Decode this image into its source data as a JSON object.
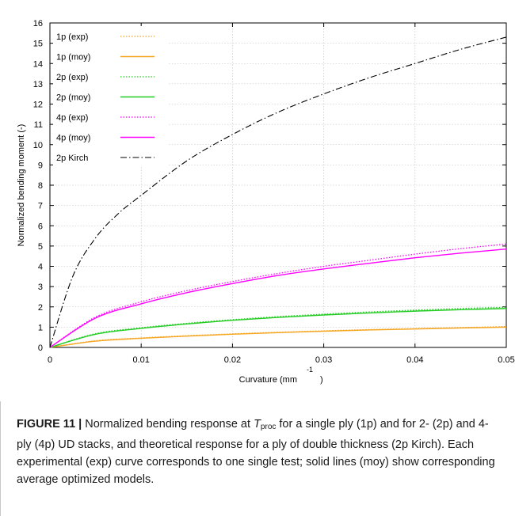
{
  "chart_data": {
    "type": "line",
    "xlabel": "Curvature (mm",
    "xlabel_exponent": "-1",
    "xlabel_close": ")",
    "ylabel": "Normalized bending moment (-)",
    "xlim": [
      0,
      0.05
    ],
    "ylim": [
      0,
      16
    ],
    "xticks": [
      "0",
      "0.01",
      "0.02",
      "0.03",
      "0.04",
      "0.05"
    ],
    "yticks": [
      "0",
      "1",
      "2",
      "3",
      "4",
      "5",
      "6",
      "7",
      "8",
      "9",
      "10",
      "11",
      "12",
      "13",
      "14",
      "15",
      "16"
    ],
    "grid": true,
    "legend_position": "top-left",
    "series": [
      {
        "name": "1p (exp)",
        "color": "#f5a623",
        "style": "dotted",
        "x": [
          0,
          0.005,
          0.01,
          0.015,
          0.02,
          0.025,
          0.03,
          0.035,
          0.04,
          0.045,
          0.05
        ],
        "y": [
          0,
          0.33,
          0.47,
          0.58,
          0.67,
          0.75,
          0.82,
          0.88,
          0.93,
          0.98,
          1.03
        ]
      },
      {
        "name": "1p (moy)",
        "color": "#f5a623",
        "style": "solid",
        "x": [
          0,
          0.005,
          0.01,
          0.015,
          0.02,
          0.025,
          0.03,
          0.035,
          0.04,
          0.045,
          0.05
        ],
        "y": [
          0,
          0.31,
          0.45,
          0.56,
          0.65,
          0.73,
          0.8,
          0.86,
          0.91,
          0.96,
          1.0
        ]
      },
      {
        "name": "2p (exp)",
        "color": "#22cc22",
        "style": "dotted",
        "x": [
          0,
          0.005,
          0.01,
          0.015,
          0.02,
          0.025,
          0.03,
          0.035,
          0.04,
          0.045,
          0.05
        ],
        "y": [
          0,
          0.68,
          0.97,
          1.19,
          1.37,
          1.52,
          1.64,
          1.75,
          1.84,
          1.92,
          1.98
        ]
      },
      {
        "name": "2p (moy)",
        "color": "#22cc22",
        "style": "solid",
        "x": [
          0,
          0.005,
          0.01,
          0.015,
          0.02,
          0.025,
          0.03,
          0.035,
          0.04,
          0.045,
          0.05
        ],
        "y": [
          0,
          0.65,
          0.94,
          1.16,
          1.34,
          1.48,
          1.6,
          1.7,
          1.79,
          1.86,
          1.92
        ]
      },
      {
        "name": "4p (exp)",
        "color": "#ff00ff",
        "style": "dotted",
        "x": [
          0,
          0.005,
          0.01,
          0.015,
          0.02,
          0.025,
          0.03,
          0.035,
          0.04,
          0.045,
          0.05
        ],
        "y": [
          0,
          1.5,
          2.25,
          2.8,
          3.25,
          3.65,
          4.0,
          4.3,
          4.6,
          4.87,
          5.1
        ]
      },
      {
        "name": "4p (moy)",
        "color": "#ff00ff",
        "style": "solid",
        "x": [
          0,
          0.005,
          0.01,
          0.015,
          0.02,
          0.025,
          0.03,
          0.035,
          0.04,
          0.045,
          0.05
        ],
        "y": [
          0,
          1.45,
          2.15,
          2.7,
          3.15,
          3.55,
          3.87,
          4.15,
          4.42,
          4.65,
          4.85
        ]
      },
      {
        "name": "2p Kirch",
        "color": "#000000",
        "style": "dashdot",
        "x": [
          0,
          0.0025,
          0.005,
          0.0075,
          0.01,
          0.015,
          0.02,
          0.025,
          0.03,
          0.035,
          0.04,
          0.045,
          0.05
        ],
        "y": [
          0,
          3.5,
          5.4,
          6.6,
          7.5,
          9.2,
          10.5,
          11.6,
          12.5,
          13.3,
          14.0,
          14.7,
          15.3
        ]
      }
    ]
  },
  "caption": {
    "figure_label": "FIGURE 11 |",
    "text_before": " Normalized bending response at ",
    "t_symbol": "T",
    "t_subscript": "proc",
    "text_after": " for a single ply (1p) and for 2- (2p) and 4-ply (4p) UD stacks, and theoretical response for a ply of double thickness (2p Kirch). Each experimental (exp) curve corresponds to one single test; solid lines (moy) show corresponding average optimized models."
  }
}
